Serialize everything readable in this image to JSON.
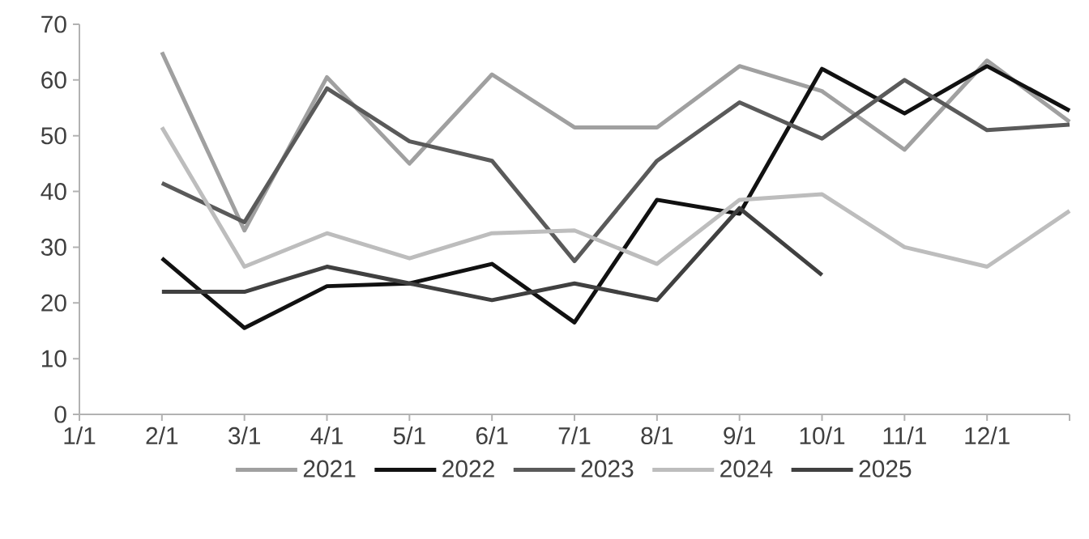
{
  "chart_data": {
    "type": "line",
    "categories": [
      "1/1",
      "2/1",
      "3/1",
      "4/1",
      "5/1",
      "6/1",
      "7/1",
      "8/1",
      "9/1",
      "10/1",
      "11/1",
      "12/1",
      null
    ],
    "series": [
      {
        "name": "2021",
        "color": "#a0a0a0",
        "values": [
          null,
          65,
          33,
          60.5,
          45,
          61,
          51.5,
          51.5,
          62.5,
          58,
          47.5,
          63.5,
          52.5
        ]
      },
      {
        "name": "2022",
        "color": "#111111",
        "values": [
          null,
          28,
          15.5,
          23,
          23.5,
          27,
          16.5,
          38.5,
          36,
          62,
          54,
          62.5,
          54.5
        ]
      },
      {
        "name": "2023",
        "color": "#5a5a5a",
        "values": [
          null,
          41.5,
          34.5,
          58.5,
          49,
          45.5,
          27.5,
          45.5,
          56,
          49.5,
          60,
          51,
          52
        ]
      },
      {
        "name": "2024",
        "color": "#bdbdbd",
        "values": [
          null,
          51.5,
          26.5,
          32.5,
          28,
          32.5,
          33,
          27,
          38.5,
          39.5,
          30,
          26.5,
          36.5
        ]
      },
      {
        "name": "2025",
        "color": "#404040",
        "values": [
          null,
          22,
          22,
          26.5,
          23.5,
          20.5,
          23.5,
          20.5,
          37,
          25,
          null,
          null,
          null
        ]
      }
    ],
    "ylim": [
      0,
      70
    ],
    "yticks": [
      0,
      10,
      20,
      30,
      40,
      50,
      60,
      70
    ],
    "legend": "bottom",
    "marker": "none",
    "line_style": "solid"
  }
}
